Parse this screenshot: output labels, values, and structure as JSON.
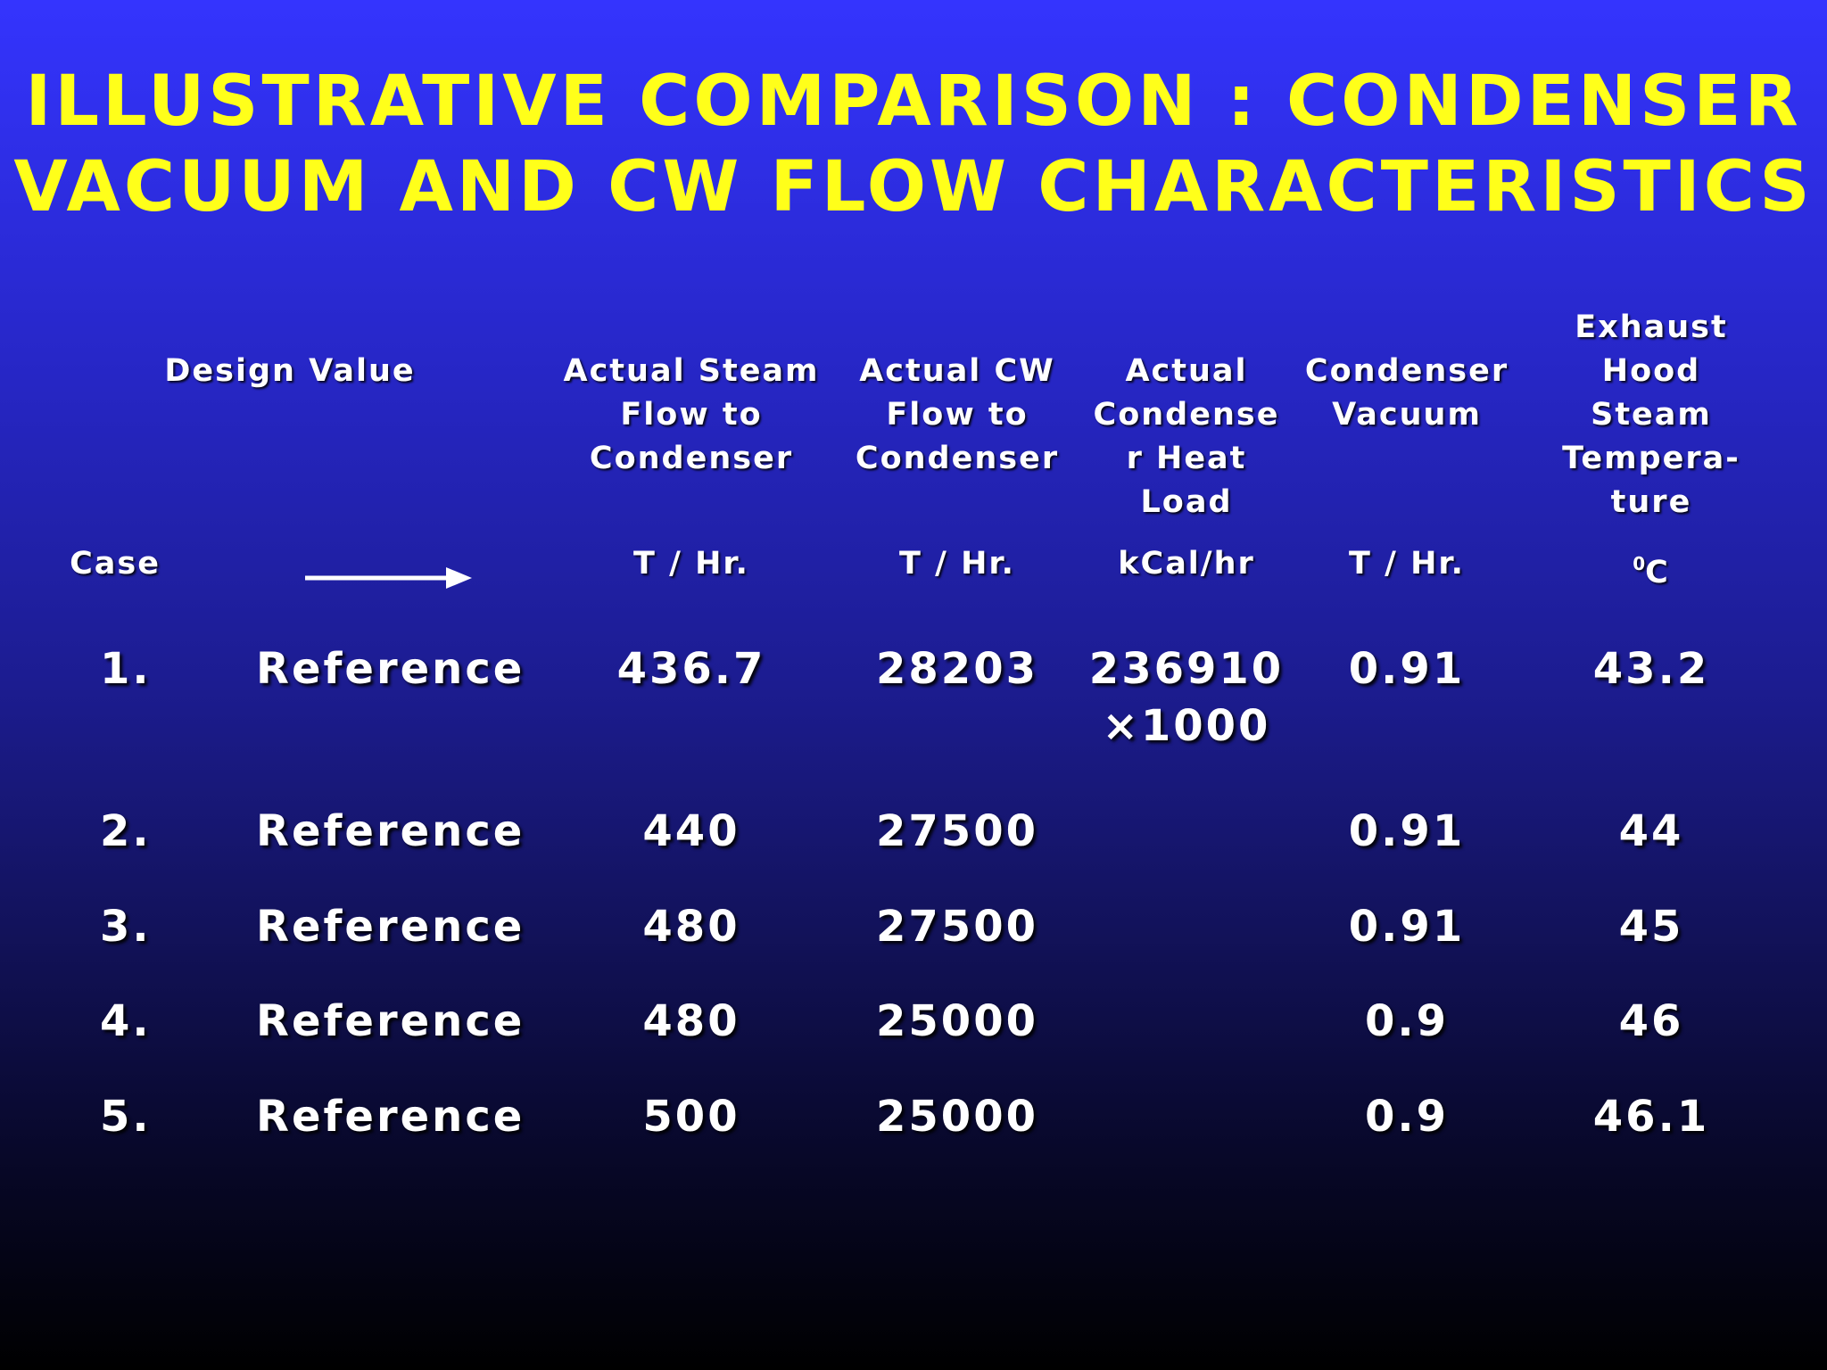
{
  "title": {
    "line1": "ILLUSTRATIVE COMPARISON : CONDENSER",
    "line2": "VACUUM AND CW FLOW CHARACTERISTICS"
  },
  "headers": {
    "design_value": "Design Value",
    "steam_flow": "Actual Steam\nFlow to\nCondenser",
    "cw_flow": "Actual CW\nFlow to\nCondenser",
    "heat_load": "Actual\nCondense\nr Heat\nLoad",
    "vacuum": "Condenser\nVacuum",
    "exhaust_temp": "Exhaust\nHood Steam\nTempera-\nture"
  },
  "units": {
    "case": "Case",
    "steam_flow": "T / Hr.",
    "cw_flow": "T / Hr.",
    "heat_load": "kCal/hr",
    "vacuum": "T / Hr.",
    "exhaust_temp_sup": "0",
    "exhaust_temp": "C"
  },
  "rows": [
    {
      "case": "1.",
      "design": "Reference",
      "steam_flow": "436.7",
      "cw_flow": "28203",
      "heat_load": "236910",
      "heat_load_multiplier": "×1000",
      "vacuum": "0.91",
      "exhaust_temp": "43.2"
    },
    {
      "case": "2.",
      "design": "Reference",
      "steam_flow": "440",
      "cw_flow": "27500",
      "heat_load": "",
      "vacuum": "0.91",
      "exhaust_temp": "44"
    },
    {
      "case": "3.",
      "design": "Reference",
      "steam_flow": "480",
      "cw_flow": "27500",
      "heat_load": "",
      "vacuum": "0.91",
      "exhaust_temp": "45"
    },
    {
      "case": "4.",
      "design": "Reference",
      "steam_flow": "480",
      "cw_flow": "25000",
      "heat_load": "",
      "vacuum": "0.9",
      "exhaust_temp": "46"
    },
    {
      "case": "5.",
      "design": "Reference",
      "steam_flow": "500",
      "cw_flow": "25000",
      "heat_load": "",
      "vacuum": "0.9",
      "exhaust_temp": "46.1"
    }
  ],
  "colors": {
    "title": "#ffff1a",
    "text": "#ffffff",
    "background_top": "#3434fe",
    "background_bottom": "#000000"
  },
  "icons": {
    "arrow": "right-arrow-icon"
  }
}
